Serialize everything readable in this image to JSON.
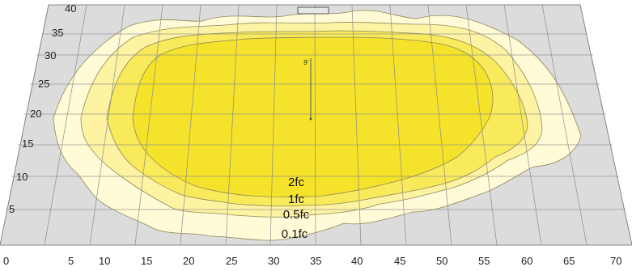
{
  "diagram": {
    "x_ticks": [
      "0",
      "5",
      "10",
      "15",
      "20",
      "25",
      "30",
      "35",
      "40",
      "45",
      "50",
      "55",
      "60",
      "65",
      "70"
    ],
    "y_ticks": [
      "40",
      "35",
      "30",
      "25",
      "20",
      "15",
      "10",
      "5"
    ],
    "mount_height_label": "9'",
    "contour_labels": [
      "2fc",
      "1fc",
      "0.5fc",
      "0.1fc"
    ],
    "colors": {
      "ground": "#dcdcdc",
      "grid": "#8a8a8a",
      "contour_0.1fc": "#fffbd6",
      "contour_0.5fc": "#fdf3a3",
      "contour_1fc": "#f8ea5a",
      "contour_2fc": "#f5e22a",
      "contour_stroke": "#8d875a"
    }
  }
}
